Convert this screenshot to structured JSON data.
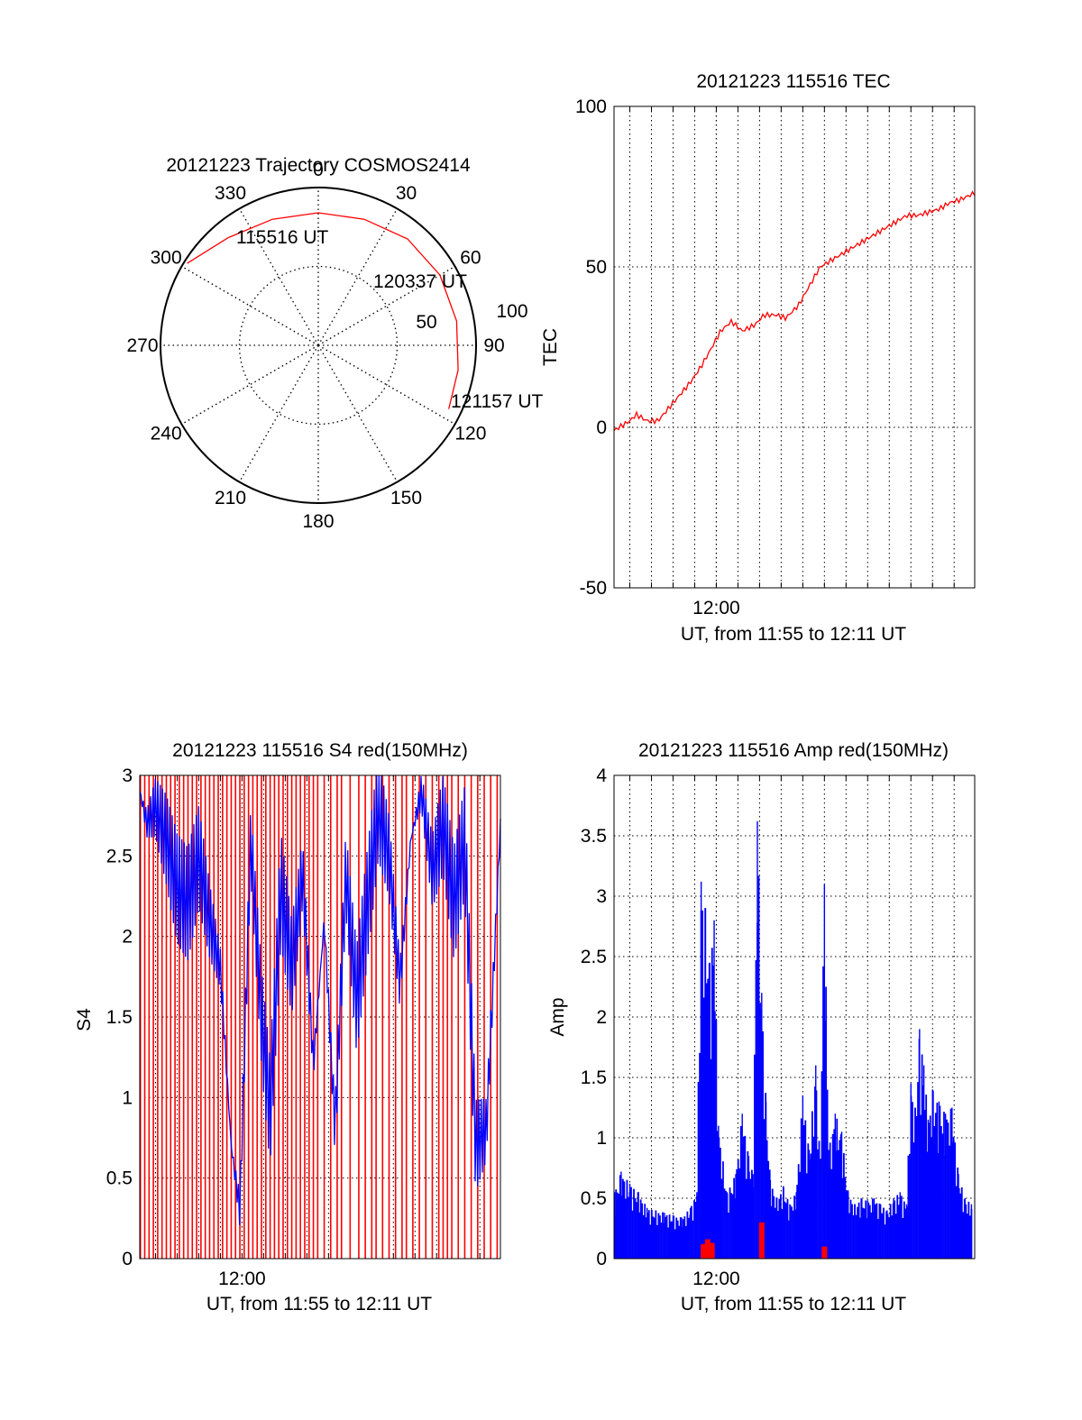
{
  "chart_data": [
    {
      "type": "polar",
      "title": "20121223 Trajectory COSMOS2414",
      "angle_labels": [
        "0",
        "30",
        "60",
        "90",
        "120",
        "150",
        "180",
        "210",
        "240",
        "270",
        "300",
        "330"
      ],
      "angles_deg": [
        0,
        30,
        60,
        90,
        120,
        150,
        180,
        210,
        240,
        270,
        300,
        330
      ],
      "radial_labels": [
        "50",
        "100"
      ],
      "radial_values": [
        50,
        100
      ],
      "radial_max": 100,
      "grid": true,
      "series": [
        {
          "color": "#ff0000",
          "azimuth_deg": [
            -58,
            -40,
            -20,
            0,
            20,
            40,
            60,
            80,
            100,
            116
          ],
          "zenith_deg": [
            98,
            89,
            85,
            84,
            85,
            88,
            89,
            89,
            90,
            92
          ]
        }
      ],
      "annotations": [
        {
          "text": "115516 UT",
          "azimuth_deg": -58,
          "zenith_deg": 98
        },
        {
          "text": "120337 UT",
          "azimuth_deg": 48,
          "zenith_deg": 88
        },
        {
          "text": "121157 UT",
          "azimuth_deg": 116,
          "zenith_deg": 92
        }
      ]
    },
    {
      "type": "line",
      "title": "20121223 115516 TEC",
      "xlabel": "UT, from 11:55 to 12:11 UT",
      "ylabel": "TEC",
      "xlim": [
        715.27,
        731.95
      ],
      "ylim": [
        -50,
        100
      ],
      "x_tick_labels": [
        "12:00"
      ],
      "x_tick_values": [
        720
      ],
      "y_tick_values": [
        -50,
        0,
        50,
        100
      ],
      "grid": true,
      "series": [
        {
          "color": "#ff0000",
          "x": [
            715.27,
            715.5,
            716.0,
            716.3,
            716.8,
            717.3,
            717.8,
            718.3,
            718.8,
            719.3,
            719.8,
            720.2,
            720.7,
            721.2,
            721.8,
            722.2,
            722.8,
            723.2,
            723.8,
            724.3,
            724.8,
            725.3,
            725.8,
            726.3,
            726.8,
            727.3,
            727.8,
            728.3,
            728.8,
            729.3,
            729.8,
            730.3,
            730.8,
            731.3,
            731.95
          ],
          "y": [
            -1,
            0,
            2,
            4,
            2,
            2,
            6,
            10,
            14,
            19,
            25,
            30,
            33,
            30,
            32,
            35,
            35,
            34,
            38,
            44,
            50,
            52,
            54,
            56,
            58,
            60,
            62,
            64,
            66,
            66,
            67,
            68,
            70,
            71,
            73
          ]
        }
      ]
    },
    {
      "type": "line",
      "title": "20121223 115516 S4 red(150MHz)",
      "xlabel": "UT, from 11:55 to 12:11 UT",
      "ylabel": "S4",
      "xlim": [
        715.27,
        731.95
      ],
      "ylim": [
        0,
        3
      ],
      "x_tick_labels": [
        "12:00"
      ],
      "x_tick_values": [
        720
      ],
      "y_tick_values": [
        0,
        0.5,
        1,
        1.5,
        2,
        2.5,
        3
      ],
      "grid": true,
      "series": [
        {
          "color": "#0000ff",
          "x": [
            715.27,
            715.6,
            716.0,
            716.5,
            717.0,
            717.5,
            718.0,
            718.5,
            719.0,
            719.5,
            719.9,
            720.4,
            720.9,
            721.3,
            721.8,
            722.3,
            722.8,
            723.3,
            723.8,
            724.3,
            724.8,
            725.3,
            725.8,
            726.3,
            726.8,
            727.3,
            727.8,
            728.3,
            728.8,
            729.3,
            729.8,
            730.3,
            730.8,
            731.3,
            731.95
          ],
          "y": [
            2.9,
            2.7,
            2.8,
            2.6,
            2.3,
            2.2,
            2.5,
            2.1,
            1.8,
            0.7,
            0.3,
            2.6,
            1.5,
            0.9,
            2.3,
            1.8,
            2.4,
            1.2,
            2.1,
            0.8,
            2.4,
            1.6,
            2.2,
            2.8,
            2.5,
            1.7,
            2.6,
            2.9,
            2.4,
            2.7,
            2.2,
            2.6,
            0.7,
            0.8,
            2.7
          ]
        },
        {
          "color": "#ff0000",
          "x": [
            715.3,
            715.5,
            715.7,
            715.9,
            716.1,
            716.3,
            716.5,
            716.7,
            716.9,
            717.1,
            717.3,
            717.5,
            717.7,
            717.9,
            718.1,
            718.3,
            718.5,
            718.7,
            718.9,
            719.1,
            719.3,
            719.5,
            719.7,
            719.9,
            720.1,
            720.3,
            720.5,
            720.7,
            720.9,
            721.1,
            721.3,
            721.5,
            721.7,
            721.9,
            722.1,
            722.3,
            722.5,
            722.7,
            722.9,
            723.1,
            723.3,
            723.5,
            723.8,
            724.1,
            724.4,
            724.6,
            725.0,
            725.4,
            725.7,
            726.0,
            726.2,
            726.5,
            726.8,
            727.1,
            727.4,
            727.6,
            727.9,
            728.2,
            728.5,
            728.8,
            729.1,
            729.3,
            729.5,
            729.7,
            730.0,
            730.3,
            730.6,
            730.9,
            731.2,
            731.5,
            731.8
          ],
          "y": [
            3,
            0,
            3,
            0,
            3,
            0,
            3,
            0,
            3,
            0,
            3,
            0,
            3,
            0,
            3,
            0,
            3,
            0,
            3,
            0,
            3,
            0,
            3,
            0,
            3,
            0,
            3,
            0,
            3,
            0,
            3,
            0,
            3,
            0,
            3,
            0,
            3,
            0,
            3,
            0,
            3,
            0,
            3,
            0,
            3,
            0,
            3,
            0,
            3,
            0,
            3,
            0,
            3,
            0,
            3,
            0,
            3,
            0,
            3,
            0,
            3,
            0,
            3,
            0,
            3,
            0,
            3,
            0,
            3,
            0,
            3
          ]
        }
      ]
    },
    {
      "type": "bar",
      "title": "20121223 115516 Amp red(150MHz)",
      "xlabel": "UT, from 11:55 to 12:11 UT",
      "ylabel": "Amp",
      "xlim": [
        715.27,
        731.95
      ],
      "ylim": [
        0,
        4
      ],
      "x_tick_labels": [
        "12:00"
      ],
      "x_tick_values": [
        720
      ],
      "y_tick_values": [
        0,
        0.5,
        1,
        1.5,
        2,
        2.5,
        3,
        3.5,
        4
      ],
      "grid": true,
      "series": [
        {
          "color": "#0000ff",
          "x": [
            715.3,
            715.6,
            716.0,
            716.4,
            716.8,
            717.2,
            717.6,
            718.0,
            718.4,
            718.8,
            719.1,
            719.3,
            719.5,
            719.7,
            719.9,
            720.1,
            720.5,
            720.9,
            721.2,
            721.5,
            721.7,
            721.9,
            722.1,
            722.3,
            722.5,
            722.8,
            723.1,
            723.4,
            723.7,
            724.0,
            724.3,
            724.6,
            724.8,
            725.0,
            725.2,
            725.5,
            725.8,
            726.1,
            726.4,
            726.7,
            727.0,
            727.3,
            727.6,
            727.9,
            728.2,
            728.5,
            728.8,
            729.0,
            729.2,
            729.4,
            729.6,
            729.8,
            730.0,
            730.3,
            730.6,
            730.9,
            731.2,
            731.5,
            731.8
          ],
          "y": [
            0.55,
            0.72,
            0.62,
            0.55,
            0.42,
            0.4,
            0.38,
            0.36,
            0.34,
            0.42,
            0.55,
            3.12,
            2.9,
            2.45,
            2.8,
            1.1,
            0.55,
            0.7,
            1.2,
            0.85,
            0.7,
            3.62,
            2.2,
            1.3,
            0.65,
            0.5,
            0.6,
            0.45,
            0.55,
            1.35,
            0.9,
            1.6,
            0.8,
            3.1,
            0.9,
            1.2,
            1.05,
            0.55,
            0.45,
            0.5,
            0.48,
            0.5,
            0.45,
            0.4,
            0.5,
            0.55,
            0.45,
            1.45,
            1.25,
            1.9,
            1.6,
            1.15,
            1.4,
            1.3,
            1.2,
            1.25,
            0.7,
            0.5,
            0.45
          ]
        },
        {
          "color": "#ff0000",
          "x": [
            719.4,
            719.6,
            719.8,
            722.1,
            725.0
          ],
          "y": [
            0.12,
            0.16,
            0.13,
            0.3,
            0.1
          ]
        }
      ]
    }
  ]
}
